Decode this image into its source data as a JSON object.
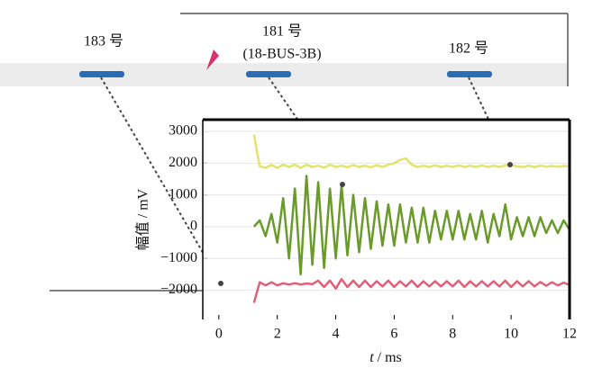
{
  "chart_data": {
    "type": "line",
    "annotations": [
      "183 号",
      "181 号",
      "(18-BUS-3B)",
      "182 号"
    ],
    "xlabel_var": "t",
    "xlabel_unit": "/ ms",
    "ylabel": "幅值 / mV",
    "xlim": [
      -0.55,
      12
    ],
    "xticks": [
      0,
      2,
      4,
      6,
      8,
      10,
      12
    ],
    "ylim": [
      -2920,
      3370
    ],
    "yticks": [
      {
        "value": -2000,
        "label": "−2000"
      },
      {
        "value": -1000,
        "label": "−1000"
      },
      0,
      1000,
      2000,
      3000
    ],
    "x": [
      1.2,
      1.4,
      1.6,
      1.8,
      2,
      2.2,
      2.4,
      2.6,
      2.8,
      3,
      3.2,
      3.4,
      3.6,
      3.8,
      4,
      4.2,
      4.4,
      4.6,
      4.8,
      5,
      5.2,
      5.4,
      5.6,
      5.8,
      6,
      6.2,
      6.4,
      6.6,
      6.8,
      7,
      7.2,
      7.4,
      7.6,
      7.8,
      8,
      8.2,
      8.4,
      8.6,
      8.8,
      9,
      9.2,
      9.4,
      9.6,
      9.8,
      10,
      10.2,
      10.4,
      10.6,
      10.8,
      11,
      11.2,
      11.4,
      11.6,
      11.8,
      12
    ],
    "series": [
      {
        "color": "#e4e46a",
        "values": [
          2900,
          1900,
          1850,
          1950,
          1850,
          1950,
          1880,
          1950,
          1850,
          1950,
          1880,
          1920,
          1860,
          1950,
          1880,
          1920,
          1870,
          1940,
          1880,
          1920,
          1870,
          1940,
          1880,
          1950,
          2000,
          2100,
          2150,
          1950,
          1880,
          1920,
          1880,
          1930,
          1880,
          1920,
          1880,
          1930,
          1880,
          1920,
          1880,
          1930,
          1880,
          1920,
          1880,
          1930,
          1950,
          1900,
          1880,
          1920,
          1880,
          1920,
          1890,
          1910,
          1890,
          1910,
          1900
        ]
      },
      {
        "color": "#6a9a2a",
        "values": [
          0,
          200,
          -300,
          400,
          -500,
          900,
          -1000,
          1200,
          -1500,
          1600,
          -1200,
          1400,
          -1300,
          1200,
          -1000,
          1300,
          -900,
          1000,
          -800,
          900,
          -700,
          800,
          -600,
          700,
          -600,
          700,
          -500,
          600,
          -500,
          600,
          -500,
          500,
          -400,
          500,
          -400,
          500,
          -400,
          400,
          -400,
          500,
          -500,
          400,
          -300,
          700,
          -400,
          300,
          -300,
          300,
          -300,
          300,
          -200,
          200,
          -200,
          200,
          -100
        ]
      },
      {
        "color": "#e0607a",
        "values": [
          -2400,
          -1750,
          -1850,
          -1750,
          -1850,
          -1780,
          -1820,
          -1780,
          -1820,
          -1790,
          -1810,
          -1700,
          -1900,
          -1700,
          -1950,
          -1650,
          -1900,
          -1700,
          -1900,
          -1700,
          -1900,
          -1720,
          -1880,
          -1700,
          -1900,
          -1720,
          -1880,
          -1700,
          -1900,
          -1720,
          -1880,
          -1720,
          -1880,
          -1720,
          -1880,
          -1700,
          -1900,
          -1720,
          -1880,
          -1720,
          -1880,
          -1720,
          -1880,
          -1700,
          -1900,
          -1720,
          -1880,
          -1720,
          -1880,
          -1740,
          -1860,
          -1750,
          -1850,
          -1760,
          -1840
        ]
      }
    ]
  }
}
